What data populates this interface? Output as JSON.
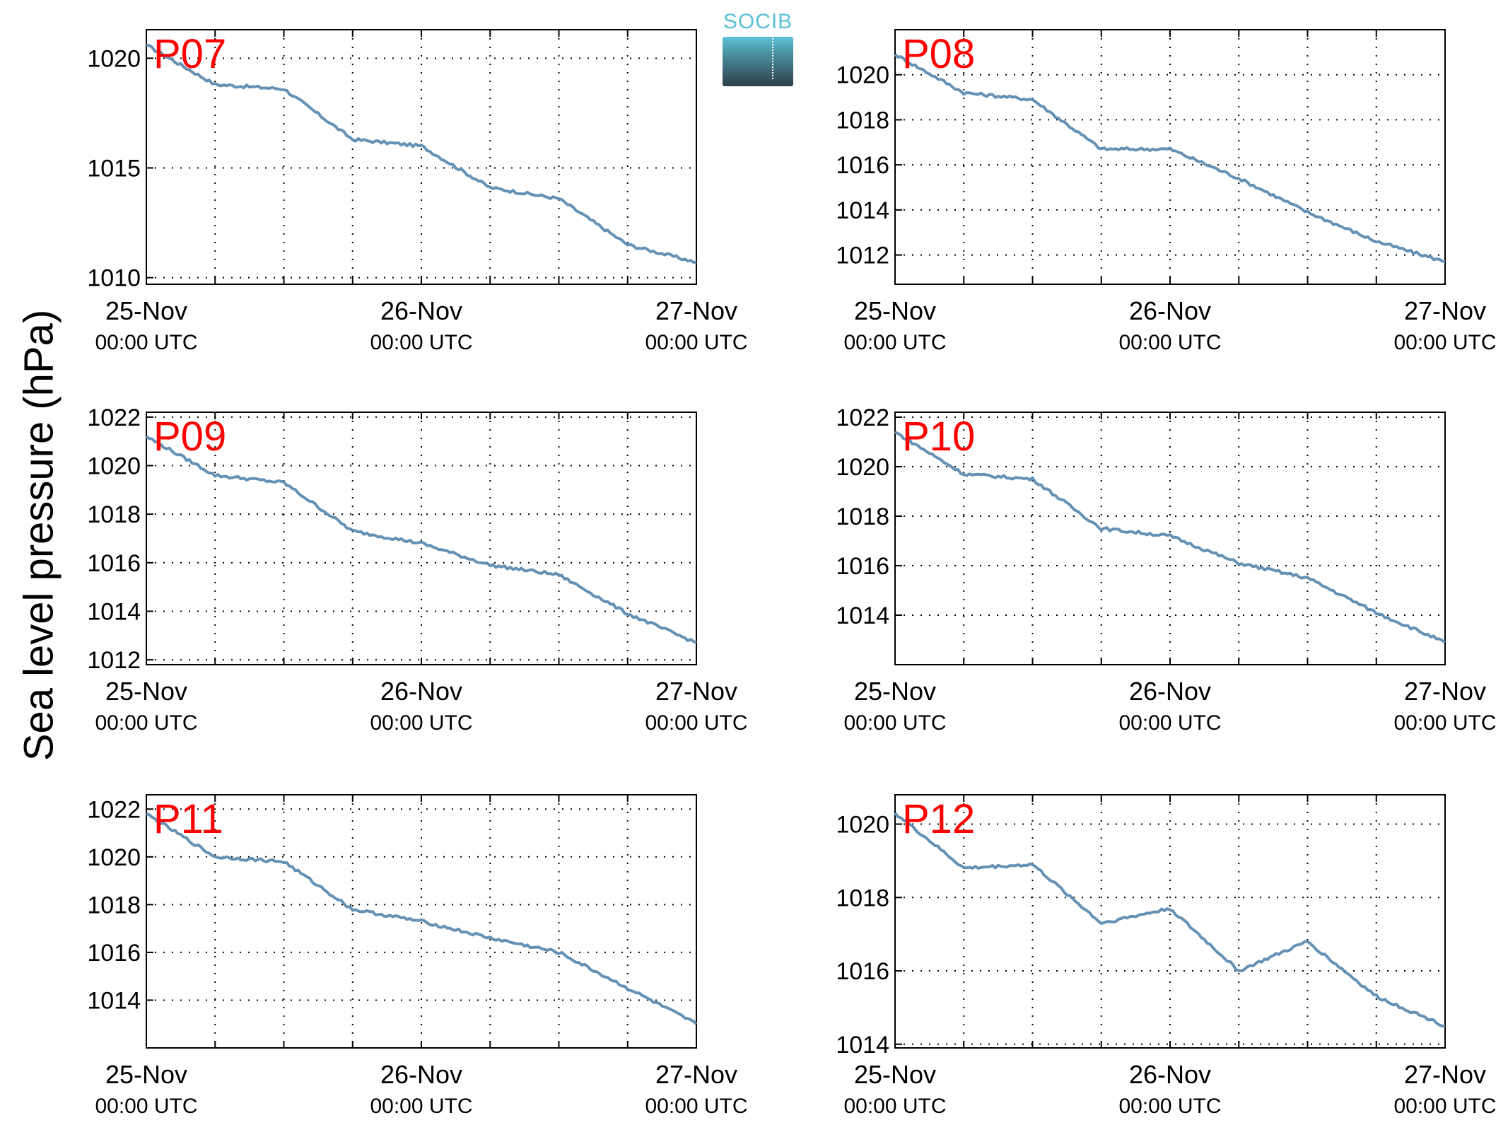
{
  "ylabel": "Sea level pressure (hPa)",
  "logo": {
    "text": "SOCIB"
  },
  "colors": {
    "line": "#6591b4",
    "label": "#ff0000",
    "axis": "#000000"
  },
  "chart_data": [
    {
      "type": "line",
      "label": "P07",
      "x": [
        "25-Nov 00:00 UTC",
        "25-Nov 06:00 UTC",
        "25-Nov 12:00 UTC",
        "25-Nov 18:00 UTC",
        "26-Nov 00:00 UTC",
        "26-Nov 06:00 UTC",
        "26-Nov 12:00 UTC",
        "26-Nov 18:00 UTC",
        "27-Nov 00:00 UTC"
      ],
      "xticks": [
        {
          "label": "25-Nov",
          "sub": "00:00 UTC"
        },
        {
          "label": "26-Nov",
          "sub": "00:00 UTC"
        },
        {
          "label": "27-Nov",
          "sub": "00:00 UTC"
        }
      ],
      "ylim": [
        1009.7,
        1021.3
      ],
      "yticks": [
        1010,
        1015,
        1020
      ],
      "grid": true,
      "series": [
        {
          "values": [
            1020.6,
            1018.8,
            1018.6,
            1016.3,
            1016.0,
            1014.1,
            1013.6,
            1011.5,
            1010.7
          ]
        }
      ]
    },
    {
      "type": "line",
      "label": "P08",
      "x": [
        "25-Nov 00:00 UTC",
        "25-Nov 06:00 UTC",
        "25-Nov 12:00 UTC",
        "25-Nov 18:00 UTC",
        "26-Nov 00:00 UTC",
        "26-Nov 06:00 UTC",
        "26-Nov 12:00 UTC",
        "26-Nov 18:00 UTC",
        "27-Nov 00:00 UTC"
      ],
      "xticks": [
        {
          "label": "25-Nov",
          "sub": "00:00 UTC"
        },
        {
          "label": "26-Nov",
          "sub": "00:00 UTC"
        },
        {
          "label": "27-Nov",
          "sub": "00:00 UTC"
        }
      ],
      "ylim": [
        1010.7,
        1022.0
      ],
      "yticks": [
        1012,
        1014,
        1016,
        1018,
        1020
      ],
      "grid": true,
      "series": [
        {
          "values": [
            1020.9,
            1019.2,
            1018.9,
            1016.7,
            1016.7,
            1015.4,
            1013.9,
            1012.6,
            1011.7
          ]
        }
      ]
    },
    {
      "type": "line",
      "label": "P09",
      "x": [
        "25-Nov 00:00 UTC",
        "25-Nov 06:00 UTC",
        "25-Nov 12:00 UTC",
        "25-Nov 18:00 UTC",
        "26-Nov 00:00 UTC",
        "26-Nov 06:00 UTC",
        "26-Nov 12:00 UTC",
        "26-Nov 18:00 UTC",
        "27-Nov 00:00 UTC"
      ],
      "xticks": [
        {
          "label": "25-Nov",
          "sub": "00:00 UTC"
        },
        {
          "label": "26-Nov",
          "sub": "00:00 UTC"
        },
        {
          "label": "27-Nov",
          "sub": "00:00 UTC"
        }
      ],
      "ylim": [
        1011.8,
        1022.2
      ],
      "yticks": [
        1012,
        1014,
        1016,
        1018,
        1020,
        1022
      ],
      "grid": true,
      "series": [
        {
          "values": [
            1021.2,
            1019.6,
            1019.3,
            1017.3,
            1016.8,
            1015.9,
            1015.5,
            1013.9,
            1012.7
          ]
        }
      ]
    },
    {
      "type": "line",
      "label": "P10",
      "x": [
        "25-Nov 00:00 UTC",
        "25-Nov 06:00 UTC",
        "25-Nov 12:00 UTC",
        "25-Nov 18:00 UTC",
        "26-Nov 00:00 UTC",
        "26-Nov 06:00 UTC",
        "26-Nov 12:00 UTC",
        "26-Nov 18:00 UTC",
        "27-Nov 00:00 UTC"
      ],
      "xticks": [
        {
          "label": "25-Nov",
          "sub": "00:00 UTC"
        },
        {
          "label": "26-Nov",
          "sub": "00:00 UTC"
        },
        {
          "label": "27-Nov",
          "sub": "00:00 UTC"
        }
      ],
      "ylim": [
        1012.0,
        1022.2
      ],
      "yticks": [
        1014,
        1016,
        1018,
        1020,
        1022
      ],
      "grid": true,
      "series": [
        {
          "values": [
            1021.4,
            1019.7,
            1019.5,
            1017.5,
            1017.2,
            1016.1,
            1015.5,
            1014.1,
            1012.9
          ]
        }
      ]
    },
    {
      "type": "line",
      "label": "P11",
      "x": [
        "25-Nov 00:00 UTC",
        "25-Nov 06:00 UTC",
        "25-Nov 12:00 UTC",
        "25-Nov 18:00 UTC",
        "26-Nov 00:00 UTC",
        "26-Nov 06:00 UTC",
        "26-Nov 12:00 UTC",
        "26-Nov 18:00 UTC",
        "27-Nov 00:00 UTC"
      ],
      "xticks": [
        {
          "label": "25-Nov",
          "sub": "00:00 UTC"
        },
        {
          "label": "26-Nov",
          "sub": "00:00 UTC"
        },
        {
          "label": "27-Nov",
          "sub": "00:00 UTC"
        }
      ],
      "ylim": [
        1012.0,
        1022.6
      ],
      "yticks": [
        1014,
        1016,
        1018,
        1020,
        1022
      ],
      "grid": true,
      "series": [
        {
          "values": [
            1021.8,
            1020.0,
            1019.8,
            1017.8,
            1017.3,
            1016.6,
            1016.0,
            1014.5,
            1013.0
          ]
        }
      ]
    },
    {
      "type": "line",
      "label": "P12",
      "x": [
        "25-Nov 00:00 UTC",
        "25-Nov 06:00 UTC",
        "25-Nov 12:00 UTC",
        "25-Nov 18:00 UTC",
        "26-Nov 00:00 UTC",
        "26-Nov 06:00 UTC",
        "26-Nov 12:00 UTC",
        "26-Nov 18:00 UTC",
        "27-Nov 00:00 UTC"
      ],
      "xticks": [
        {
          "label": "25-Nov",
          "sub": "00:00 UTC"
        },
        {
          "label": "26-Nov",
          "sub": "00:00 UTC"
        },
        {
          "label": "27-Nov",
          "sub": "00:00 UTC"
        }
      ],
      "ylim": [
        1013.9,
        1020.8
      ],
      "yticks": [
        1014,
        1016,
        1018,
        1020
      ],
      "grid": true,
      "series": [
        {
          "values": [
            1020.3,
            1018.8,
            1018.9,
            1017.3,
            1017.7,
            1016.0,
            1016.8,
            1015.3,
            1014.5
          ]
        }
      ]
    }
  ]
}
